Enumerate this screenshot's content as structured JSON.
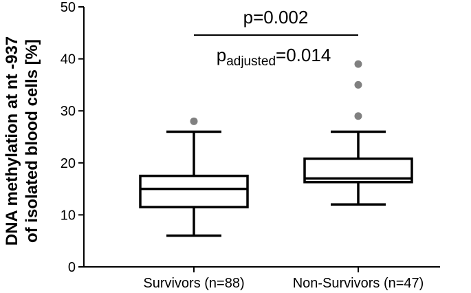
{
  "chart_data": {
    "type": "box",
    "ylabel_lines": [
      "DNA methylation at nt -937",
      "of isolated blood cells [%]"
    ],
    "ylim": [
      0,
      50
    ],
    "yticks": [
      0,
      10,
      20,
      30,
      40,
      50
    ],
    "categories": [
      "Survivors (n=88)",
      "Non-Survivors (n=47)"
    ],
    "boxes": [
      {
        "whisker_low": 6,
        "q1": 11.5,
        "median": 15,
        "q3": 17.5,
        "whisker_high": 26,
        "outliers": [
          28
        ]
      },
      {
        "whisker_low": 12,
        "q1": 16.3,
        "median": 17,
        "q3": 20.8,
        "whisker_high": 26,
        "outliers": [
          29,
          35,
          39
        ]
      }
    ],
    "annotation": {
      "p_text": "p=0.002",
      "padj_prefix": "p",
      "padj_sub": "adjusted",
      "padj_value": "=0.014"
    },
    "grid": false,
    "outlier_color": "#808080"
  }
}
